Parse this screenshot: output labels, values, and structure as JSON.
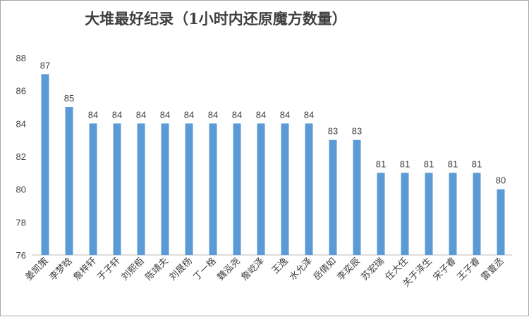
{
  "chart_data": {
    "type": "bar",
    "title": "大堆最好纪录（1小时内还原魔方数量）",
    "xlabel": "",
    "ylabel": "",
    "ylim": [
      76,
      88
    ],
    "yticks": [
      76,
      78,
      80,
      82,
      84,
      86,
      88
    ],
    "grid": false,
    "legend": "none",
    "bar_color": "#5b9bd5",
    "categories": [
      "姜凯策",
      "李梦晗",
      "詹梓轩",
      "于子轩",
      "刘熙栢",
      "陈靖夫",
      "刘晟杨",
      "丁一格",
      "魏泓尧",
      "詹屹泽",
      "王逸",
      "水允泽",
      "岳倩如",
      "李奕辰",
      "苏宏瑞",
      "任大任",
      "关于泽生",
      "宋子睿",
      "王子睿",
      "雷壹丞"
    ],
    "values": [
      87,
      85,
      84,
      84,
      84,
      84,
      84,
      84,
      84,
      84,
      84,
      84,
      83,
      83,
      81,
      81,
      81,
      81,
      81,
      80
    ]
  }
}
